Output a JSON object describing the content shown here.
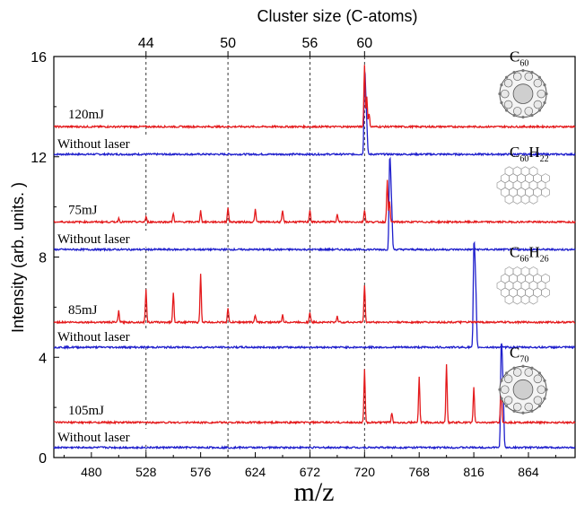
{
  "chart_data": {
    "type": "line",
    "title": "",
    "xlabel": "m/z",
    "ylabel": "Intensity (arb. units. )",
    "top_axis_label": "Cluster size (C-atoms)",
    "xlim": [
      447,
      905
    ],
    "ylim": [
      0,
      16
    ],
    "x_ticks": [
      480,
      528,
      576,
      624,
      672,
      720,
      768,
      816,
      864
    ],
    "y_ticks": [
      0,
      4,
      8,
      12,
      16
    ],
    "top_ticks": [
      {
        "label": "44",
        "mz": 528
      },
      {
        "label": "50",
        "mz": 600
      },
      {
        "label": "56",
        "mz": 672
      },
      {
        "label": "60",
        "mz": 720
      }
    ],
    "grid": false,
    "panels": [
      {
        "molecule": "C60",
        "mol_sub": "60",
        "mol_h": "",
        "mol_icon": "fullerene-icon",
        "laser": {
          "label": "120mJ",
          "baseline": 13.2,
          "color": "#e41a1c",
          "peaks": [
            [
              720,
              2.5
            ],
            [
              722,
              1.2
            ],
            [
              724,
              0.5
            ]
          ]
        },
        "nolaser": {
          "label": "Without laser",
          "baseline": 12.1,
          "color": "#1f1fcc",
          "peaks": [
            [
              720,
              3.0
            ],
            [
              721,
              1.8
            ],
            [
              722,
              1.0
            ]
          ]
        }
      },
      {
        "molecule": "C60H22",
        "mol_sub": "60",
        "mol_h": "22",
        "mol_icon": "pah-icon",
        "laser": {
          "label": "75mJ",
          "baseline": 9.4,
          "color": "#e41a1c",
          "peaks": [
            [
              504,
              0.15
            ],
            [
              528,
              0.2
            ],
            [
              552,
              0.35
            ],
            [
              576,
              0.45
            ],
            [
              600,
              0.6
            ],
            [
              624,
              0.5
            ],
            [
              648,
              0.45
            ],
            [
              672,
              0.5
            ],
            [
              696,
              0.35
            ],
            [
              720,
              0.5
            ],
            [
              740,
              1.7
            ],
            [
              742,
              0.8
            ]
          ]
        },
        "nolaser": {
          "label": "Without laser",
          "baseline": 8.3,
          "color": "#1f1fcc",
          "peaks": [
            [
              742,
              3.2
            ],
            [
              743,
              2.2
            ],
            [
              744,
              1.2
            ]
          ]
        }
      },
      {
        "molecule": "C66H26",
        "mol_sub": "66",
        "mol_h": "26",
        "mol_icon": "pah-icon",
        "laser": {
          "label": "85mJ",
          "baseline": 5.4,
          "color": "#e41a1c",
          "peaks": [
            [
              504,
              0.45
            ],
            [
              528,
              1.3
            ],
            [
              552,
              1.2
            ],
            [
              576,
              1.9
            ],
            [
              600,
              0.55
            ],
            [
              624,
              0.3
            ],
            [
              648,
              0.3
            ],
            [
              672,
              0.4
            ],
            [
              696,
              0.25
            ],
            [
              720,
              1.5
            ]
          ]
        },
        "nolaser": {
          "label": "Without laser",
          "baseline": 4.4,
          "color": "#1f1fcc",
          "peaks": [
            [
              816,
              3.6
            ],
            [
              817,
              2.6
            ],
            [
              818,
              1.6
            ]
          ]
        }
      },
      {
        "molecule": "C70",
        "mol_sub": "70",
        "mol_h": "",
        "mol_icon": "fullerene-icon",
        "laser": {
          "label": "105mJ",
          "baseline": 1.4,
          "color": "#e41a1c",
          "peaks": [
            [
              720,
              2.1
            ],
            [
              744,
              0.4
            ],
            [
              768,
              1.8
            ],
            [
              792,
              2.3
            ],
            [
              816,
              1.4
            ],
            [
              840,
              1.7
            ]
          ]
        },
        "nolaser": {
          "label": "Without laser",
          "baseline": 0.4,
          "color": "#1f1fcc",
          "peaks": [
            [
              840,
              3.6
            ],
            [
              841,
              2.6
            ],
            [
              842,
              1.6
            ]
          ]
        }
      }
    ]
  }
}
